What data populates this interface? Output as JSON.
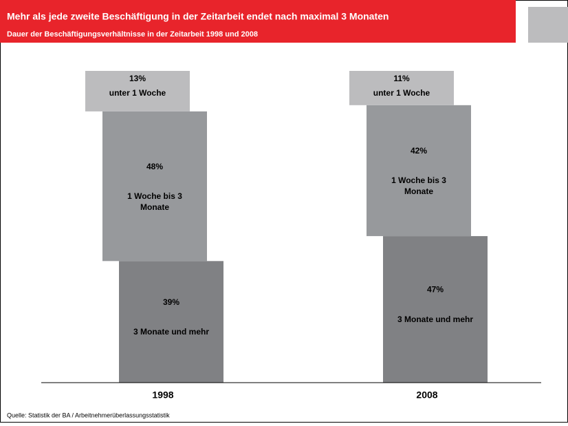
{
  "chart_data": {
    "type": "bar",
    "stacked": true,
    "title": "Mehr als jede zweite Beschäftigung in der Zeitarbeit endet nach maximal 3 Monaten",
    "subtitle": "Dauer der Beschäftigungsverhältnisse in der Zeitarbeit 1998 und 2008",
    "source": "Quelle: Statistik der BA / Arbeitnehmerüberlassungsstatistik",
    "categories": [
      "1998",
      "2008"
    ],
    "ylim": [
      0,
      100
    ],
    "series": [
      {
        "name": "3 Monate und mehr",
        "color": "#808184",
        "values": [
          39,
          47
        ],
        "value_labels": [
          "39%",
          "47%"
        ]
      },
      {
        "name": "1 Woche bis 3 Monate",
        "color": "#97999c",
        "values": [
          48,
          42
        ],
        "value_labels": [
          "48%",
          "42%"
        ]
      },
      {
        "name": "unter 1 Woche",
        "color": "#bcbcbe",
        "values": [
          13,
          11
        ],
        "value_labels": [
          "13%",
          "11%"
        ]
      }
    ]
  }
}
